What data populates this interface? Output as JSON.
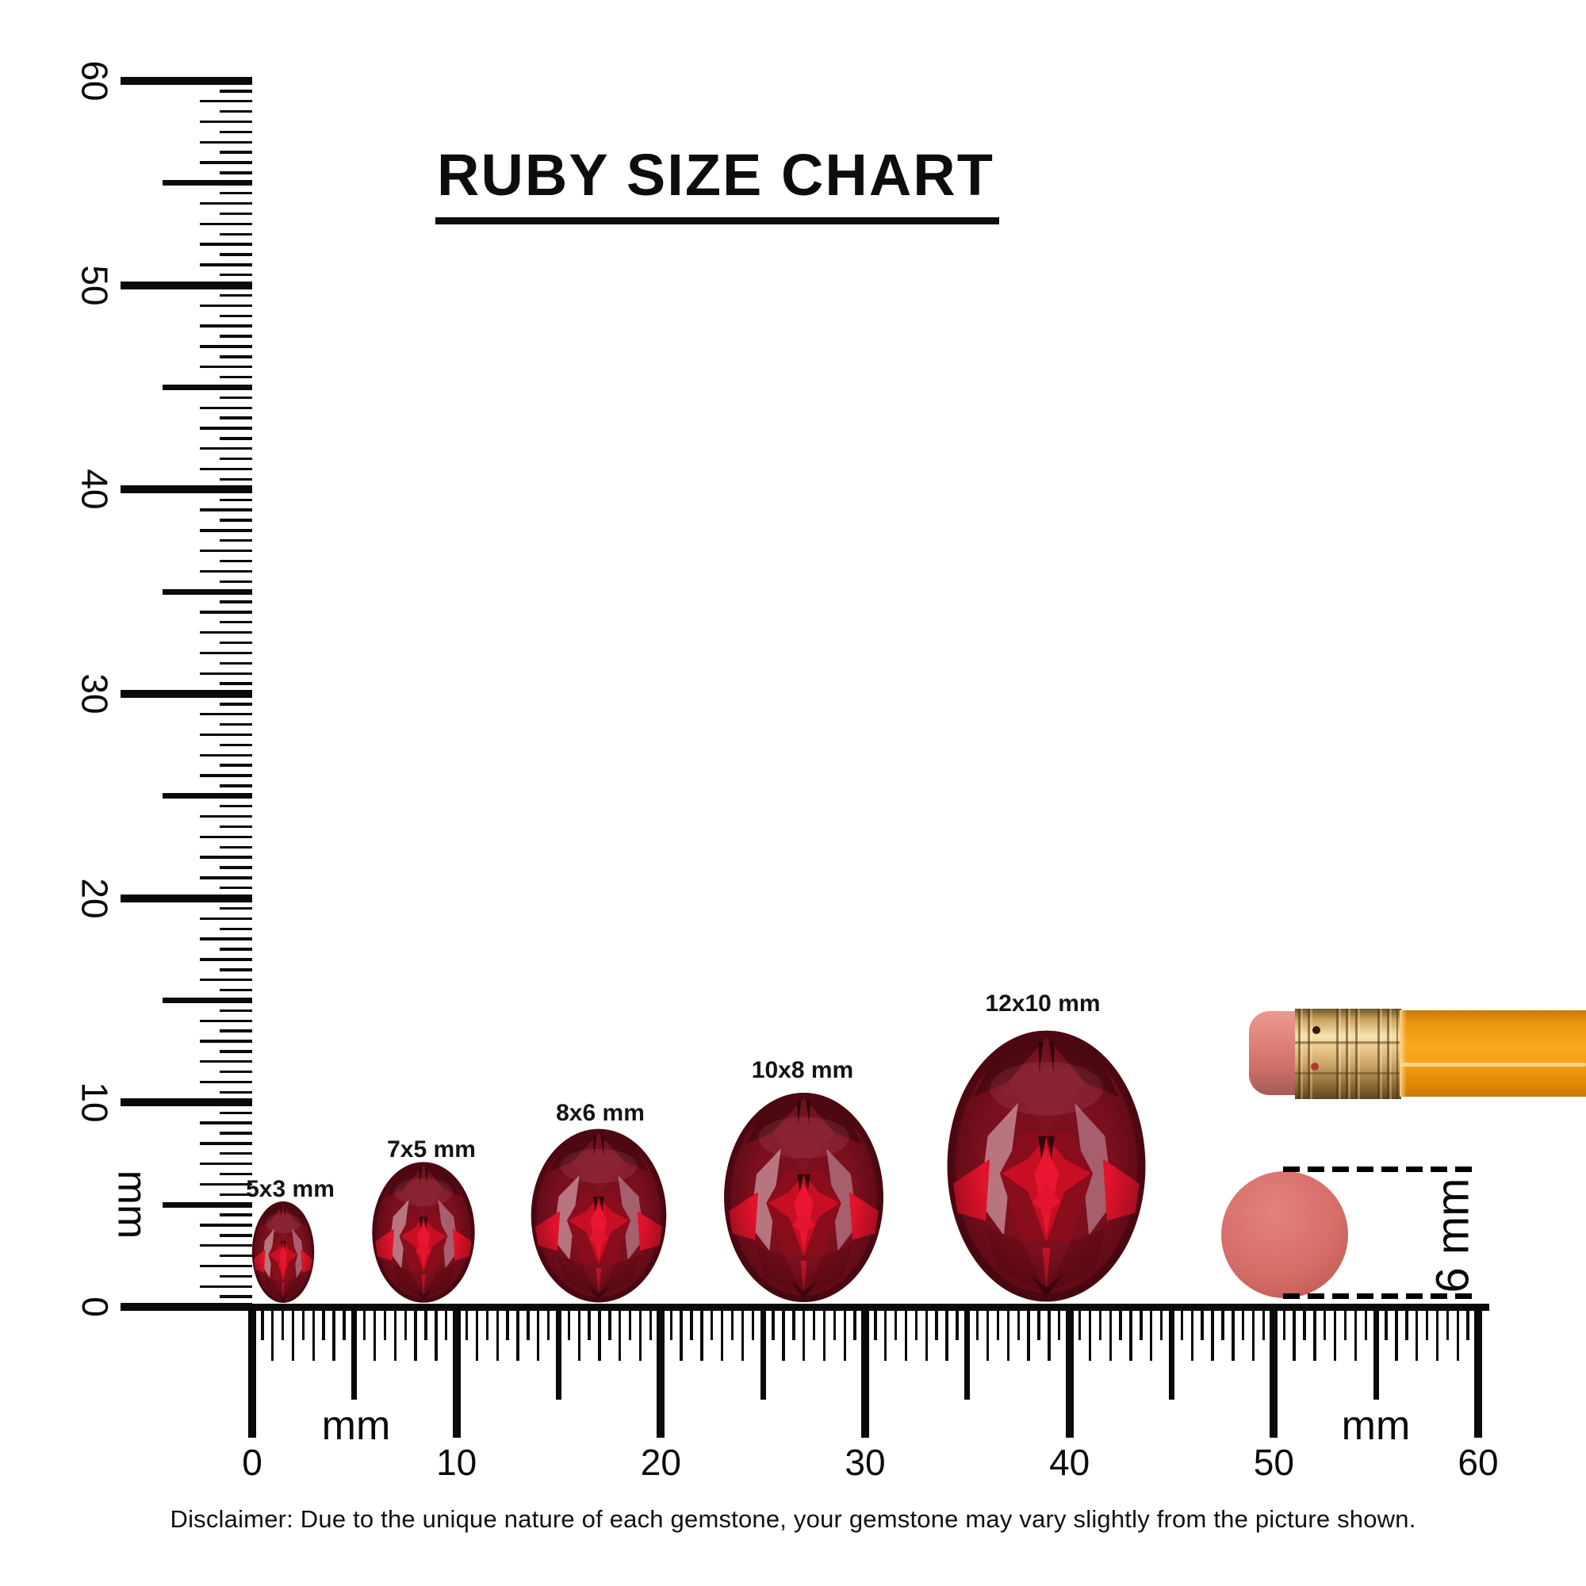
{
  "title": "RUBY SIZE CHART",
  "vertical_ruler": {
    "unit_label": "mm",
    "tick_labels": [
      "0",
      "10",
      "20",
      "30",
      "40",
      "50",
      "60"
    ]
  },
  "horizontal_ruler": {
    "unit_label_left": "mm",
    "unit_label_right": "mm",
    "tick_labels": [
      "0",
      "10",
      "20",
      "30",
      "40",
      "50",
      "60"
    ]
  },
  "gems": [
    {
      "label": "5x3 mm"
    },
    {
      "label": "7x5 mm"
    },
    {
      "label": "8x6 mm"
    },
    {
      "label": "10x8 mm"
    },
    {
      "label": "12x10 mm"
    }
  ],
  "reference": {
    "eraser_label": "6 mm"
  },
  "disclaimer": "Disclaimer: Due to the unique nature of each gemstone, your gemstone may vary slightly from the picture shown.",
  "colors": {
    "ruby_dark": "#5d0a15",
    "ruby_mid": "#8a0d1b",
    "ruby_bright": "#e0132b",
    "ruby_highlight": "#bd7b85",
    "pencil_body_orange": "#f59a12",
    "ferrule_brass": "#caa268",
    "eraser_pink": "#d9827d",
    "eraser_disc_pink": "#d66e68",
    "ink": "#000000"
  },
  "chart_data": {
    "type": "table",
    "title": "RUBY SIZE CHART",
    "unit": "mm",
    "gem_shape": "oval",
    "ruler_range_mm": [
      0,
      60
    ],
    "gem_sizes_mm": [
      [
        5,
        3
      ],
      [
        7,
        5
      ],
      [
        8,
        6
      ],
      [
        10,
        8
      ],
      [
        12,
        10
      ]
    ],
    "gem_labels": [
      "5x3 mm",
      "7x5 mm",
      "8x6 mm",
      "10x8 mm",
      "12x10 mm"
    ],
    "reference_objects": [
      {
        "name": "pencil-eraser-end"
      },
      {
        "name": "pencil-eraser-disc",
        "diameter_mm": 6,
        "diameter_label": "6 mm"
      }
    ]
  }
}
